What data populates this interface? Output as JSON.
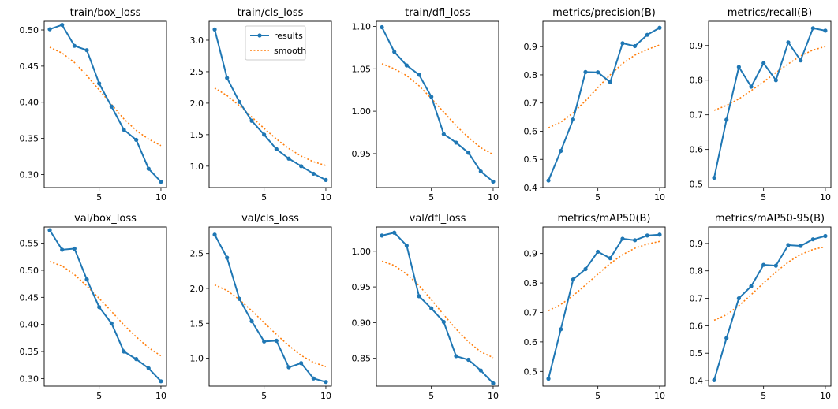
{
  "colors": {
    "results": "#1f77b4",
    "smooth": "#ff7f0e",
    "axes": "#000000"
  },
  "legend": {
    "results_label": "results",
    "smooth_label": "smooth",
    "placement": "top-right of train/cls_loss"
  },
  "chart_data": [
    {
      "type": "line",
      "title": "train/box_loss",
      "x": [
        1,
        2,
        3,
        4,
        5,
        6,
        7,
        8,
        9,
        10
      ],
      "xticks": [
        5,
        10
      ],
      "ylim": [
        0.282,
        0.512
      ],
      "yticks": [
        0.3,
        0.35,
        0.4,
        0.45,
        0.5
      ],
      "ytick_labels": [
        "0.30",
        "0.35",
        "0.40",
        "0.45",
        "0.50"
      ],
      "series": [
        {
          "name": "results",
          "values": [
            0.501,
            0.507,
            0.478,
            0.472,
            0.426,
            0.394,
            0.362,
            0.348,
            0.308,
            0.29
          ]
        },
        {
          "name": "smooth",
          "values": [
            0.476,
            0.468,
            0.455,
            0.437,
            0.417,
            0.397,
            0.377,
            0.361,
            0.349,
            0.34
          ]
        }
      ]
    },
    {
      "type": "line",
      "title": "train/cls_loss",
      "x": [
        1,
        2,
        3,
        4,
        5,
        6,
        7,
        8,
        9,
        10
      ],
      "xticks": [
        5,
        10
      ],
      "ylim": [
        0.66,
        3.3
      ],
      "yticks": [
        1.0,
        1.5,
        2.0,
        2.5,
        3.0
      ],
      "ytick_labels": [
        "1.0",
        "1.5",
        "2.0",
        "2.5",
        "3.0"
      ],
      "series": [
        {
          "name": "results",
          "values": [
            3.17,
            2.4,
            2.02,
            1.72,
            1.5,
            1.27,
            1.12,
            1.0,
            0.88,
            0.78
          ]
        },
        {
          "name": "smooth",
          "values": [
            2.24,
            2.12,
            1.96,
            1.78,
            1.6,
            1.43,
            1.28,
            1.16,
            1.07,
            1.01
          ]
        }
      ]
    },
    {
      "type": "line",
      "title": "train/dfl_loss",
      "x": [
        1,
        2,
        3,
        4,
        5,
        6,
        7,
        8,
        9,
        10
      ],
      "xticks": [
        5,
        10
      ],
      "ylim": [
        0.91,
        1.106
      ],
      "yticks": [
        0.95,
        1.0,
        1.05,
        1.1
      ],
      "ytick_labels": [
        "0.95",
        "1.00",
        "1.05",
        "1.10"
      ],
      "series": [
        {
          "name": "results",
          "values": [
            1.099,
            1.07,
            1.054,
            1.043,
            1.017,
            0.973,
            0.963,
            0.951,
            0.929,
            0.917
          ]
        },
        {
          "name": "smooth",
          "values": [
            1.056,
            1.05,
            1.042,
            1.03,
            1.015,
            0.999,
            0.983,
            0.969,
            0.957,
            0.949
          ]
        }
      ]
    },
    {
      "type": "line",
      "title": "metrics/precision(B)",
      "x": [
        1,
        2,
        3,
        4,
        5,
        6,
        7,
        8,
        9,
        10
      ],
      "xticks": [
        5,
        10
      ],
      "ylim": [
        0.4,
        0.99
      ],
      "yticks": [
        0.4,
        0.5,
        0.6,
        0.7,
        0.8,
        0.9
      ],
      "ytick_labels": [
        "0.4",
        "0.5",
        "0.6",
        "0.7",
        "0.8",
        "0.9"
      ],
      "series": [
        {
          "name": "results",
          "values": [
            0.425,
            0.53,
            0.642,
            0.81,
            0.809,
            0.774,
            0.912,
            0.902,
            0.942,
            0.967
          ]
        },
        {
          "name": "smooth",
          "values": [
            0.612,
            0.632,
            0.665,
            0.708,
            0.755,
            0.8,
            0.84,
            0.87,
            0.89,
            0.906
          ]
        }
      ]
    },
    {
      "type": "line",
      "title": "metrics/recall(B)",
      "x": [
        1,
        2,
        3,
        4,
        5,
        6,
        7,
        8,
        9,
        10
      ],
      "xticks": [
        5,
        10
      ],
      "ylim": [
        0.49,
        0.97
      ],
      "yticks": [
        0.5,
        0.6,
        0.7,
        0.8,
        0.9
      ],
      "ytick_labels": [
        "0.5",
        "0.6",
        "0.7",
        "0.8",
        "0.9"
      ],
      "series": [
        {
          "name": "results",
          "values": [
            0.518,
            0.686,
            0.838,
            0.781,
            0.849,
            0.8,
            0.909,
            0.857,
            0.95,
            0.943
          ]
        },
        {
          "name": "smooth",
          "values": [
            0.713,
            0.727,
            0.746,
            0.77,
            0.795,
            0.822,
            0.847,
            0.87,
            0.887,
            0.897
          ]
        }
      ]
    },
    {
      "type": "line",
      "title": "val/box_loss",
      "x": [
        1,
        2,
        3,
        4,
        5,
        6,
        7,
        8,
        9,
        10
      ],
      "xticks": [
        5,
        10
      ],
      "ylim": [
        0.286,
        0.58
      ],
      "yticks": [
        0.3,
        0.35,
        0.4,
        0.45,
        0.5,
        0.55
      ],
      "ytick_labels": [
        "0.30",
        "0.35",
        "0.40",
        "0.45",
        "0.50",
        "0.55"
      ],
      "series": [
        {
          "name": "results",
          "values": [
            0.574,
            0.538,
            0.54,
            0.483,
            0.432,
            0.402,
            0.35,
            0.336,
            0.319,
            0.295
          ]
        },
        {
          "name": "smooth",
          "values": [
            0.516,
            0.508,
            0.492,
            0.471,
            0.448,
            0.424,
            0.399,
            0.377,
            0.357,
            0.342
          ]
        }
      ]
    },
    {
      "type": "line",
      "title": "val/cls_loss",
      "x": [
        1,
        2,
        3,
        4,
        5,
        6,
        7,
        8,
        9,
        10
      ],
      "xticks": [
        5,
        10
      ],
      "ylim": [
        0.6,
        2.88
      ],
      "yticks": [
        1.0,
        1.5,
        2.0,
        2.5
      ],
      "ytick_labels": [
        "1.0",
        "1.5",
        "2.0",
        "2.5"
      ],
      "series": [
        {
          "name": "results",
          "values": [
            2.77,
            2.44,
            1.85,
            1.53,
            1.24,
            1.25,
            0.87,
            0.93,
            0.71,
            0.66
          ]
        },
        {
          "name": "smooth",
          "values": [
            2.05,
            1.97,
            1.84,
            1.68,
            1.51,
            1.34,
            1.18,
            1.04,
            0.94,
            0.88
          ]
        }
      ]
    },
    {
      "type": "line",
      "title": "val/dfl_loss",
      "x": [
        1,
        2,
        3,
        4,
        5,
        6,
        7,
        8,
        9,
        10
      ],
      "xticks": [
        5,
        10
      ],
      "ylim": [
        0.811,
        1.034
      ],
      "yticks": [
        0.85,
        0.9,
        0.95,
        1.0
      ],
      "ytick_labels": [
        "0.85",
        "0.90",
        "0.95",
        "1.00"
      ],
      "series": [
        {
          "name": "results",
          "values": [
            1.022,
            1.026,
            1.008,
            0.937,
            0.92,
            0.901,
            0.853,
            0.848,
            0.833,
            0.815
          ]
        },
        {
          "name": "smooth",
          "values": [
            0.986,
            0.98,
            0.968,
            0.952,
            0.932,
            0.911,
            0.891,
            0.873,
            0.859,
            0.851
          ]
        }
      ]
    },
    {
      "type": "line",
      "title": "metrics/mAP50(B)",
      "x": [
        1,
        2,
        3,
        4,
        5,
        6,
        7,
        8,
        9,
        10
      ],
      "xticks": [
        5,
        10
      ],
      "ylim": [
        0.45,
        0.99
      ],
      "yticks": [
        0.5,
        0.6,
        0.7,
        0.8,
        0.9
      ],
      "ytick_labels": [
        "0.5",
        "0.6",
        "0.7",
        "0.8",
        "0.9"
      ],
      "series": [
        {
          "name": "results",
          "values": [
            0.475,
            0.643,
            0.812,
            0.847,
            0.906,
            0.884,
            0.95,
            0.945,
            0.961,
            0.964
          ]
        },
        {
          "name": "smooth",
          "values": [
            0.706,
            0.727,
            0.757,
            0.793,
            0.83,
            0.866,
            0.896,
            0.918,
            0.932,
            0.941
          ]
        }
      ]
    },
    {
      "type": "line",
      "title": "metrics/mAP50-95(B)",
      "x": [
        1,
        2,
        3,
        4,
        5,
        6,
        7,
        8,
        9,
        10
      ],
      "xticks": [
        5,
        10
      ],
      "ylim": [
        0.38,
        0.96
      ],
      "yticks": [
        0.4,
        0.5,
        0.6,
        0.7,
        0.8,
        0.9
      ],
      "ytick_labels": [
        "0.4",
        "0.5",
        "0.6",
        "0.7",
        "0.8",
        "0.9"
      ],
      "series": [
        {
          "name": "results",
          "values": [
            0.402,
            0.555,
            0.7,
            0.744,
            0.822,
            0.819,
            0.894,
            0.891,
            0.915,
            0.927
          ]
        },
        {
          "name": "smooth",
          "values": [
            0.62,
            0.64,
            0.673,
            0.713,
            0.756,
            0.796,
            0.832,
            0.86,
            0.878,
            0.888
          ]
        }
      ]
    }
  ]
}
